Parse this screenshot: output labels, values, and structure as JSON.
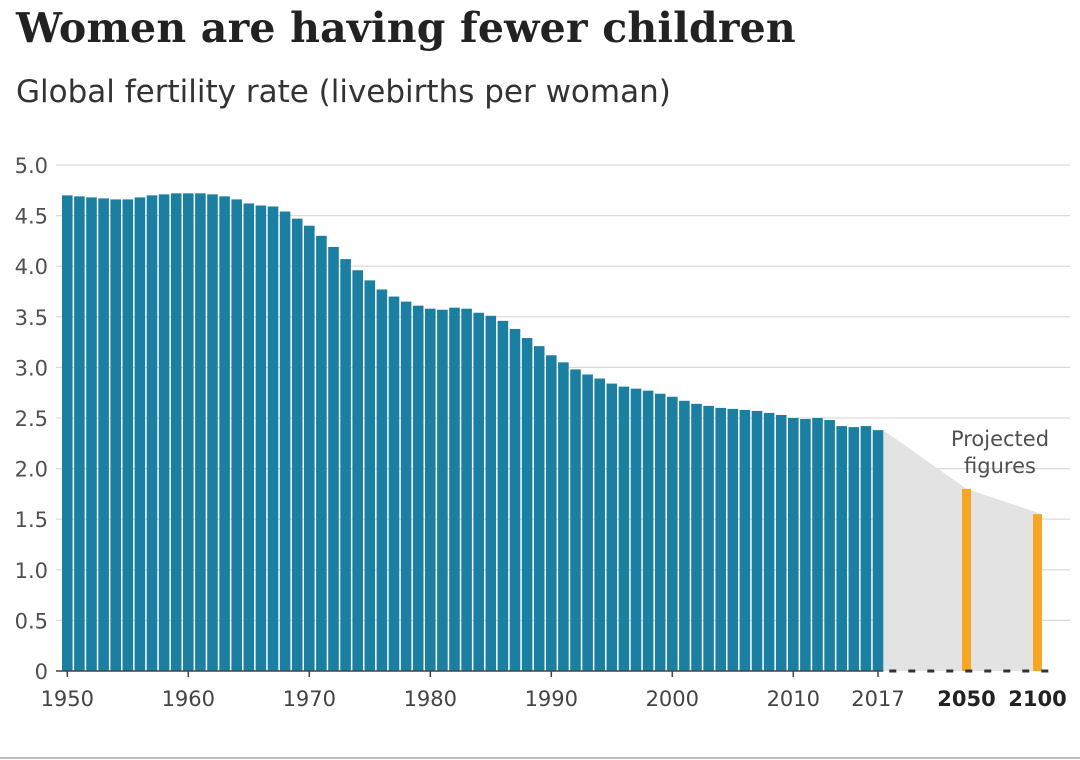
{
  "chart_data": {
    "type": "bar",
    "title": "Women are having fewer children",
    "subtitle": "Global fertility rate (livebirths per woman)",
    "ylim": [
      0,
      5
    ],
    "y_ticks": [
      "0",
      "0.5",
      "1.0",
      "1.5",
      "2.0",
      "2.5",
      "3.0",
      "3.5",
      "4.0",
      "4.5",
      "5.0"
    ],
    "x_tick_labels": [
      "1950",
      "1960",
      "1970",
      "1980",
      "1990",
      "2000",
      "2010",
      "2017"
    ],
    "projected_tick_labels": [
      "2050",
      "2100"
    ],
    "grid": true,
    "annotation": [
      "Projected",
      "figures"
    ],
    "colors": {
      "historical": "#1a7fa0",
      "projected": "#f7a623",
      "projection_band": "#e3e3e3",
      "grid": "#d9d9d9"
    },
    "series": [
      {
        "name": "historical",
        "years": [
          1950,
          1951,
          1952,
          1953,
          1954,
          1955,
          1956,
          1957,
          1958,
          1959,
          1960,
          1961,
          1962,
          1963,
          1964,
          1965,
          1966,
          1967,
          1968,
          1969,
          1970,
          1971,
          1972,
          1973,
          1974,
          1975,
          1976,
          1977,
          1978,
          1979,
          1980,
          1981,
          1982,
          1983,
          1984,
          1985,
          1986,
          1987,
          1988,
          1989,
          1990,
          1991,
          1992,
          1993,
          1994,
          1995,
          1996,
          1997,
          1998,
          1999,
          2000,
          2001,
          2002,
          2003,
          2004,
          2005,
          2006,
          2007,
          2008,
          2009,
          2010,
          2011,
          2012,
          2013,
          2014,
          2015,
          2016,
          2017
        ],
        "values": [
          4.7,
          4.69,
          4.68,
          4.67,
          4.66,
          4.66,
          4.68,
          4.7,
          4.71,
          4.72,
          4.72,
          4.72,
          4.71,
          4.69,
          4.66,
          4.62,
          4.6,
          4.59,
          4.54,
          4.47,
          4.4,
          4.3,
          4.19,
          4.07,
          3.96,
          3.86,
          3.77,
          3.7,
          3.65,
          3.61,
          3.58,
          3.57,
          3.59,
          3.58,
          3.54,
          3.51,
          3.46,
          3.38,
          3.29,
          3.21,
          3.12,
          3.05,
          2.98,
          2.93,
          2.89,
          2.84,
          2.81,
          2.79,
          2.77,
          2.74,
          2.71,
          2.67,
          2.64,
          2.62,
          2.6,
          2.59,
          2.58,
          2.57,
          2.55,
          2.53,
          2.5,
          2.49,
          2.5,
          2.48,
          2.42,
          2.41,
          2.42,
          2.38
        ]
      },
      {
        "name": "projected",
        "years": [
          2050,
          2100
        ],
        "values": [
          1.8,
          1.55
        ]
      }
    ]
  }
}
